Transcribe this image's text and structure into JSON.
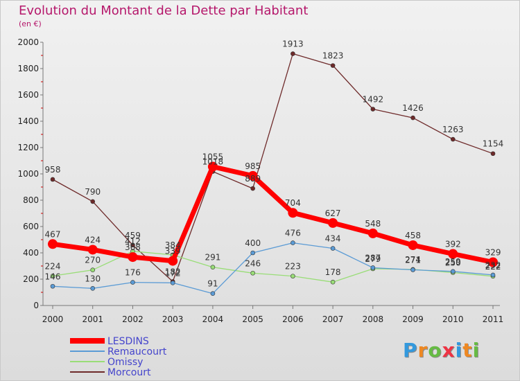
{
  "header": {
    "title": "Evolution du Montant de la Dette par Habitant",
    "subtitle": "(en €)"
  },
  "logo": {
    "text": "Proxiti"
  },
  "chart_data": {
    "type": "line",
    "x": [
      "2000",
      "2001",
      "2002",
      "2003",
      "2004",
      "2005",
      "2006",
      "2007",
      "2008",
      "2009",
      "2010",
      "2011"
    ],
    "ylim": [
      0,
      2000
    ],
    "yticks": [
      0,
      200,
      400,
      600,
      800,
      1000,
      1200,
      1400,
      1600,
      1800,
      2000
    ],
    "grid": false,
    "legend_position": "bottom-left",
    "series": [
      {
        "name": "Morcourt",
        "color": "#6e2a2a",
        "values": [
          958,
          790,
          459,
          182,
          1018,
          889,
          1913,
          1823,
          1492,
          1426,
          1263,
          1154
        ]
      },
      {
        "name": "Omissy",
        "color": "#99dd77",
        "values": [
          224,
          270,
          412,
          384,
          291,
          246,
          223,
          178,
          279,
          274,
          250,
          222
        ]
      },
      {
        "name": "Remaucourt",
        "color": "#5b9bd5",
        "values": [
          146,
          130,
          176,
          172,
          91,
          400,
          476,
          434,
          287,
          271,
          259,
          232
        ]
      },
      {
        "name": "LESDINS",
        "color": "#ff0000",
        "values": [
          467,
          424,
          368,
          339,
          1055,
          985,
          704,
          627,
          548,
          458,
          392,
          329
        ]
      }
    ]
  }
}
